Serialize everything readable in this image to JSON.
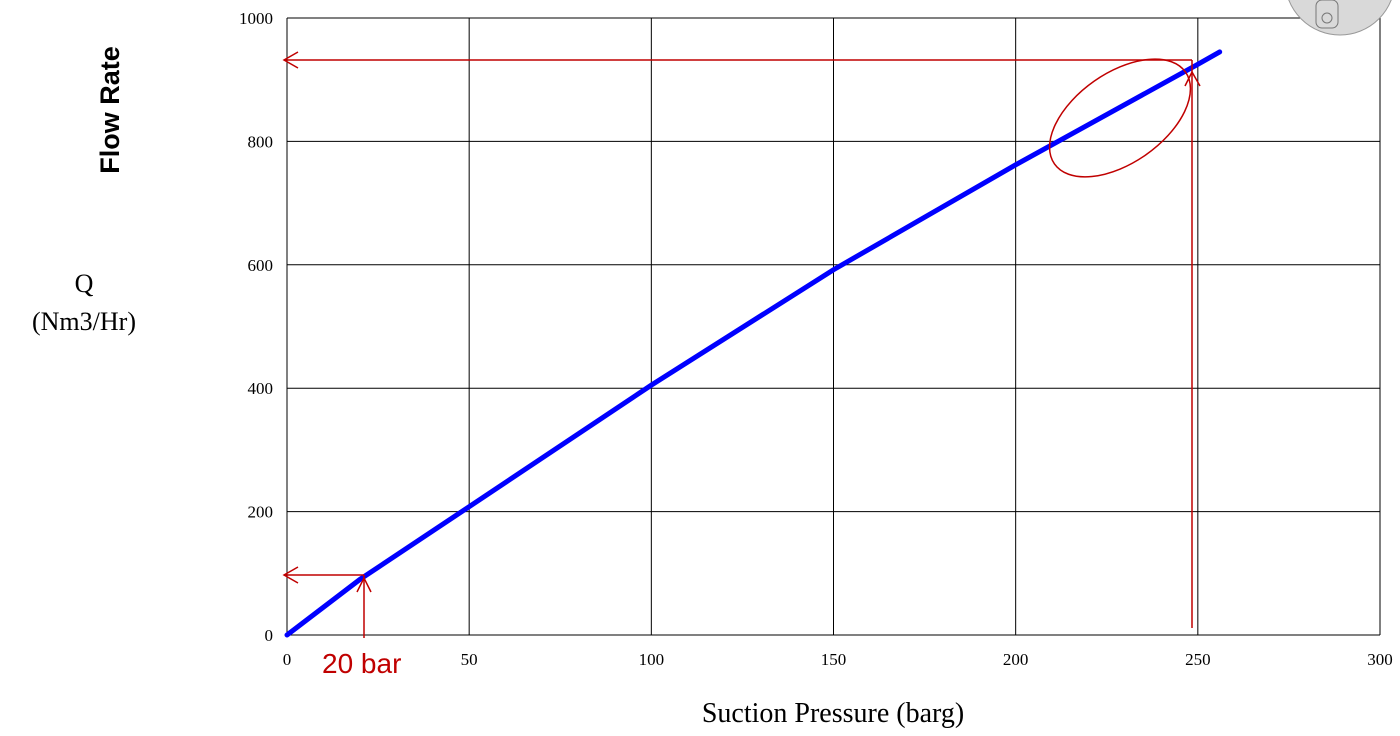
{
  "chart_data": {
    "type": "line",
    "y_title": "Flow Rate",
    "y_label": "Q",
    "y_unit": "(Nm3/Hr)",
    "x_label": "Suction Pressure (barg)",
    "annotation": "20 bar",
    "x": [
      0,
      20,
      50,
      100,
      150,
      200,
      250,
      256
    ],
    "values": [
      0,
      90,
      208,
      405,
      592,
      762,
      925,
      945
    ],
    "color": "#0000ff",
    "xlim": [
      0,
      300
    ],
    "ylim": [
      0,
      1000
    ],
    "xticks": [
      0,
      50,
      100,
      150,
      200,
      250,
      300
    ],
    "yticks": [
      0,
      200,
      400,
      600,
      800,
      1000
    ],
    "grid": true
  }
}
